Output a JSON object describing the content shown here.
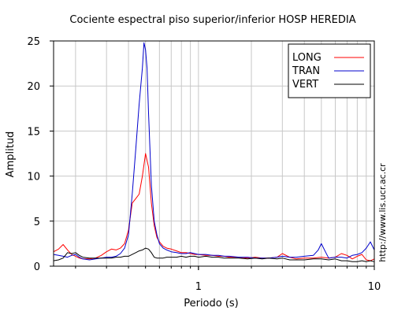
{
  "chart_data": {
    "type": "line",
    "title": "Cociente espectral piso superior/inferior  HOSP HEREDIA",
    "xlabel": "Periodo (s)",
    "ylabel": "Amplitud",
    "xscale": "log",
    "xlim": [
      0.15,
      10
    ],
    "ylim": [
      0,
      25
    ],
    "x_ticks": [
      1,
      10
    ],
    "x_tick_labels": [
      "1",
      "10"
    ],
    "y_ticks": [
      0,
      5,
      10,
      15,
      20,
      25
    ],
    "y_tick_labels": [
      "0",
      "5",
      "10",
      "15",
      "20",
      "25"
    ],
    "grid": true,
    "legend_position": "top-right",
    "series": [
      {
        "name": "LONG",
        "color": "#ff0000",
        "x": [
          0.15,
          0.16,
          0.17,
          0.18,
          0.19,
          0.2,
          0.21,
          0.22,
          0.24,
          0.26,
          0.28,
          0.3,
          0.32,
          0.34,
          0.36,
          0.38,
          0.4,
          0.42,
          0.44,
          0.46,
          0.48,
          0.5,
          0.52,
          0.54,
          0.56,
          0.58,
          0.6,
          0.63,
          0.66,
          0.7,
          0.75,
          0.8,
          0.85,
          0.9,
          0.95,
          1.0,
          1.1,
          1.2,
          1.3,
          1.4,
          1.5,
          1.7,
          1.9,
          2.1,
          2.3,
          2.5,
          2.8,
          3.0,
          3.3,
          3.6,
          4.0,
          4.5,
          5.0,
          5.5,
          6.0,
          6.5,
          7.0,
          7.5,
          8.0,
          8.5,
          9.0,
          9.5,
          10.0
        ],
        "values": [
          1.6,
          1.9,
          2.4,
          1.8,
          1.3,
          1.1,
          0.9,
          0.8,
          0.8,
          0.9,
          1.2,
          1.6,
          1.9,
          1.8,
          2.0,
          2.5,
          4.0,
          7.0,
          7.5,
          8.0,
          10.0,
          12.5,
          11.0,
          7.0,
          4.5,
          3.2,
          2.7,
          2.2,
          2.0,
          1.9,
          1.7,
          1.5,
          1.5,
          1.4,
          1.3,
          1.3,
          1.2,
          1.2,
          1.1,
          1.1,
          1.0,
          1.0,
          0.9,
          1.0,
          0.9,
          0.9,
          1.0,
          1.4,
          1.0,
          0.8,
          0.9,
          0.9,
          1.0,
          0.9,
          1.0,
          1.4,
          1.2,
          0.8,
          1.1,
          1.3,
          0.7,
          0.6,
          0.8
        ]
      },
      {
        "name": "TRAN",
        "color": "#0000cc",
        "x": [
          0.15,
          0.16,
          0.17,
          0.18,
          0.19,
          0.2,
          0.21,
          0.22,
          0.24,
          0.26,
          0.28,
          0.3,
          0.32,
          0.34,
          0.36,
          0.38,
          0.4,
          0.42,
          0.44,
          0.46,
          0.48,
          0.49,
          0.5,
          0.51,
          0.52,
          0.54,
          0.56,
          0.58,
          0.6,
          0.63,
          0.66,
          0.7,
          0.75,
          0.8,
          0.85,
          0.9,
          0.95,
          1.0,
          1.1,
          1.2,
          1.3,
          1.4,
          1.5,
          1.7,
          1.9,
          2.1,
          2.3,
          2.5,
          2.8,
          3.0,
          3.3,
          3.6,
          4.0,
          4.5,
          4.8,
          5.0,
          5.3,
          5.5,
          6.0,
          6.5,
          7.0,
          7.5,
          8.0,
          8.5,
          9.0,
          9.5,
          10.0
        ],
        "values": [
          1.3,
          1.2,
          1.1,
          1.0,
          1.2,
          1.3,
          1.0,
          0.8,
          0.7,
          0.8,
          0.9,
          1.0,
          1.0,
          1.1,
          1.4,
          2.0,
          3.5,
          8.0,
          13.0,
          18.0,
          22.0,
          24.8,
          24.0,
          22.0,
          17.0,
          9.0,
          5.0,
          3.5,
          2.5,
          2.0,
          1.8,
          1.6,
          1.5,
          1.4,
          1.4,
          1.5,
          1.4,
          1.3,
          1.3,
          1.2,
          1.2,
          1.1,
          1.1,
          1.0,
          1.0,
          0.9,
          0.9,
          0.9,
          1.0,
          1.1,
          1.0,
          1.0,
          1.1,
          1.2,
          1.8,
          2.5,
          1.5,
          0.9,
          1.0,
          1.0,
          0.9,
          1.2,
          1.3,
          1.5,
          2.0,
          2.7,
          1.8
        ]
      },
      {
        "name": "VERT",
        "color": "#000000",
        "x": [
          0.15,
          0.16,
          0.17,
          0.18,
          0.19,
          0.2,
          0.21,
          0.22,
          0.24,
          0.26,
          0.28,
          0.3,
          0.32,
          0.34,
          0.36,
          0.38,
          0.4,
          0.42,
          0.44,
          0.46,
          0.48,
          0.5,
          0.52,
          0.54,
          0.56,
          0.58,
          0.6,
          0.63,
          0.66,
          0.7,
          0.75,
          0.8,
          0.85,
          0.9,
          0.95,
          1.0,
          1.1,
          1.2,
          1.3,
          1.4,
          1.5,
          1.7,
          1.9,
          2.1,
          2.3,
          2.5,
          2.8,
          3.0,
          3.3,
          3.6,
          4.0,
          4.5,
          5.0,
          5.5,
          6.0,
          6.5,
          7.0,
          7.5,
          8.0,
          8.5,
          9.0,
          9.5,
          10.0
        ],
        "values": [
          0.6,
          0.7,
          0.9,
          1.5,
          1.4,
          1.5,
          1.2,
          1.0,
          0.9,
          0.9,
          0.9,
          0.9,
          0.9,
          1.0,
          1.0,
          1.1,
          1.1,
          1.3,
          1.5,
          1.7,
          1.8,
          2.0,
          1.9,
          1.5,
          1.0,
          0.9,
          0.9,
          0.9,
          1.0,
          1.0,
          1.0,
          1.1,
          1.0,
          1.1,
          1.1,
          1.0,
          1.1,
          1.0,
          1.0,
          0.9,
          0.9,
          0.9,
          0.8,
          0.9,
          0.8,
          0.9,
          0.8,
          0.9,
          0.7,
          0.7,
          0.7,
          0.8,
          0.8,
          0.7,
          0.8,
          0.6,
          0.6,
          0.5,
          0.5,
          0.6,
          0.5,
          0.6,
          0.5
        ]
      }
    ]
  },
  "watermark": "http://www.lis.ucr.ac.cr"
}
